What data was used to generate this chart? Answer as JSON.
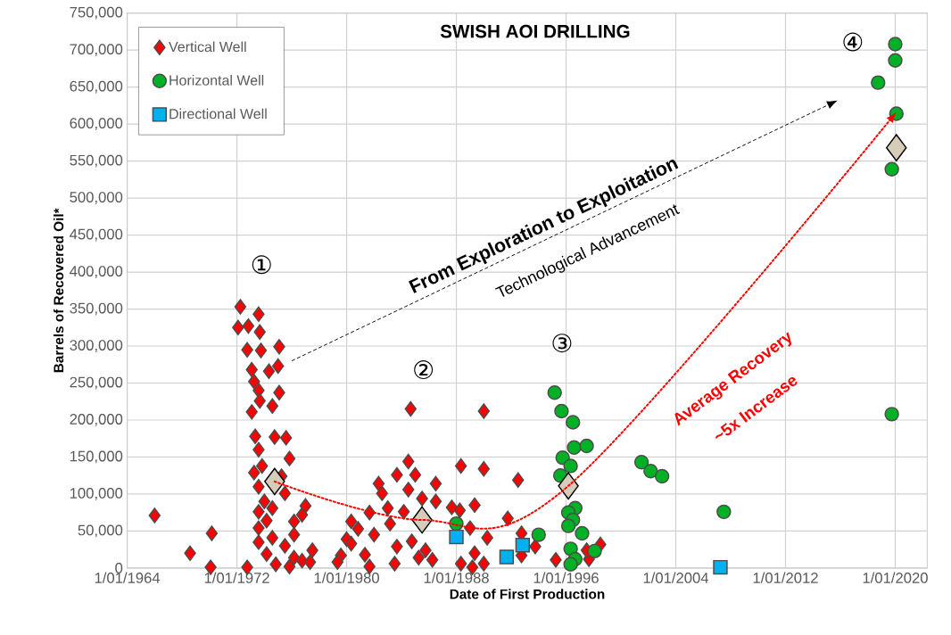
{
  "chart_data": {
    "type": "scatter",
    "title": "SWISH AOI DRILLING",
    "xlabel": "Date of First Production",
    "ylabel": "Barrels of Recovered Oil*",
    "xlim": [
      "1964-01-01",
      "2022-05-01"
    ],
    "ylim": [
      0,
      750000
    ],
    "xticks": [
      {
        "value": "1964-01-01",
        "label": "1/01/1964"
      },
      {
        "value": "1972-01-01",
        "label": "1/01/1972"
      },
      {
        "value": "1980-01-01",
        "label": "1/01/1980"
      },
      {
        "value": "1988-01-01",
        "label": "1/01/1988"
      },
      {
        "value": "1996-01-01",
        "label": "1/01/1996"
      },
      {
        "value": "2004-01-01",
        "label": "1/01/2004"
      },
      {
        "value": "2012-01-01",
        "label": "1/01/2012"
      },
      {
        "value": "2020-01-01",
        "label": "1/01/2020"
      }
    ],
    "yticks": [
      0,
      {
        "value": 50000,
        "label": "50,000"
      },
      {
        "value": 100000,
        "label": "100,000"
      },
      {
        "value": 150000,
        "label": "150,000"
      },
      {
        "value": 200000,
        "label": "200,000"
      },
      {
        "value": 250000,
        "label": "250,000"
      },
      {
        "value": 300000,
        "label": "300,000"
      },
      {
        "value": 350000,
        "label": "350,000"
      },
      {
        "value": 400000,
        "label": "400,000"
      },
      {
        "value": 450000,
        "label": "450,000"
      },
      {
        "value": 500000,
        "label": "500,000"
      },
      {
        "value": 550000,
        "label": "550,000"
      },
      {
        "value": 600000,
        "label": "600,000"
      },
      {
        "value": 650000,
        "label": "650,000"
      },
      {
        "value": 700000,
        "label": "700,000"
      },
      {
        "value": 750000,
        "label": "750,000"
      }
    ],
    "grid": true,
    "legend": "top left",
    "annotations": [
      "From Exploration to Exploitation",
      "Technological Advancement",
      "Average Recovery",
      "~5x Increase",
      "①",
      "②",
      "③",
      "④"
    ],
    "series": [
      {
        "name": "Vertical Well",
        "color": "#ff0000",
        "marker": "diamond",
        "x": [
          "1966-01",
          "1968-08",
          "1970-03",
          "1970-02",
          "1972-10",
          "1972-04",
          "1972-11",
          "1972-02",
          "1973-08",
          "1973-09",
          "1972-10",
          "1973-10",
          "1975-02",
          "1973-02",
          "1974-05",
          "1975-01",
          "1973-04",
          "1973-08",
          "1975-02",
          "1973-09",
          "1973-02",
          "1974-08",
          "1973-05",
          "1974-10",
          "1975-08",
          "1973-08",
          "1975-11",
          "1973-11",
          "1973-04",
          "1975-04",
          "1973-08",
          "1975-07",
          "1974-01",
          "1974-08",
          "1973-08",
          "1976-10",
          "1977-01",
          "1974-03",
          "1976-03",
          "1973-08",
          "1976-03",
          "1974-08",
          "1973-08",
          "1975-07",
          "1977-07",
          "1974-03",
          "1976-03",
          "1976-10",
          "1977-05",
          "1974-11",
          "1975-11",
          "1984-09",
          "1990-01",
          "1984-07",
          "1983-09",
          "1985-01",
          "1988-05",
          "1990-01",
          "1982-05",
          "1982-08",
          "1986-07",
          "1984-07",
          "1985-07",
          "1986-07",
          "1989-05",
          "1987-09",
          "1988-04",
          "1984-03",
          "1980-11",
          "1980-01",
          "1979-08",
          "1981-05",
          "1981-09",
          "1983-03",
          "1983-09",
          "1983-07",
          "1984-10",
          "1985-10",
          "1986-04",
          "1989-01",
          "1990-04",
          "1989-05",
          "1988-05",
          "1989-03",
          "1990-01",
          "1980-05",
          "1982-01",
          "1979-05",
          "1985-04",
          "1981-09",
          "1980-05",
          "1983-01",
          "1992-07",
          "1991-10",
          "1992-10",
          "1993-10",
          "1992-10",
          "1995-04",
          "1998-07",
          "1997-09",
          "1997-07"
        ],
        "values": [
          71000,
          20000,
          47000,
          1000,
          1000,
          353000,
          327000,
          325000,
          343000,
          319000,
          295000,
          294000,
          299000,
          268000,
          266000,
          273000,
          252000,
          240000,
          237000,
          226000,
          211000,
          219000,
          178000,
          177000,
          176000,
          160000,
          148000,
          138000,
          129000,
          124000,
          110000,
          101000,
          90000,
          81000,
          76000,
          72000,
          84000,
          64000,
          63000,
          54000,
          45000,
          41000,
          35000,
          30000,
          24000,
          19000,
          14000,
          10000,
          8000,
          5000,
          2000,
          215000,
          212000,
          144000,
          126000,
          126000,
          138000,
          134000,
          114000,
          101000,
          114000,
          106000,
          94000,
          90000,
          85000,
          82000,
          78000,
          76000,
          53000,
          39000,
          17000,
          18000,
          2000,
          60000,
          29000,
          6000,
          36000,
          24000,
          11000,
          54000,
          41000,
          20000,
          6000,
          1000,
          6000,
          33000,
          45000,
          8000,
          14000,
          75000,
          63000,
          81000,
          119000,
          67000,
          47000,
          29000,
          17000,
          11000,
          32000,
          12000,
          24000
        ]
      },
      {
        "name": "Horizontal Well",
        "color": "#00b025",
        "marker": "circle",
        "x": [
          "1995-03",
          "1995-09",
          "1996-07",
          "1996-08",
          "1997-07",
          "1995-10",
          "1996-05",
          "1995-08",
          "1996-09",
          "1996-03",
          "1996-07",
          "1996-03",
          "1997-03",
          "1994-01",
          "1996-05",
          "1996-09",
          "1996-05",
          "1998-02",
          "2001-07",
          "2002-03",
          "2003-01",
          "1988-01",
          "2020-01",
          "2020-01",
          "2018-10",
          "2020-02",
          "2019-10",
          "2019-10",
          "2007-07"
        ],
        "values": [
          237000,
          212000,
          197000,
          163000,
          165000,
          149000,
          138000,
          125000,
          81000,
          75000,
          65000,
          57000,
          47000,
          45000,
          26000,
          12000,
          5000,
          23000,
          143000,
          131000,
          124000,
          60000,
          708000,
          686000,
          656000,
          614000,
          539000,
          208000,
          76000
        ]
      },
      {
        "name": "Directional Well",
        "color": "#00b0f0",
        "marker": "square",
        "x": [
          "1988-01",
          "1991-09",
          "1992-11",
          "2007-04"
        ],
        "values": [
          42000,
          15000,
          31000,
          1000
        ]
      },
      {
        "color": "#d5cdb9",
        "marker": "diamond",
        "x": [
          "1974-10",
          "1985-07",
          "1996-03",
          "2020-02"
        ],
        "values": [
          117000,
          65000,
          111000,
          568000
        ]
      }
    ]
  }
}
